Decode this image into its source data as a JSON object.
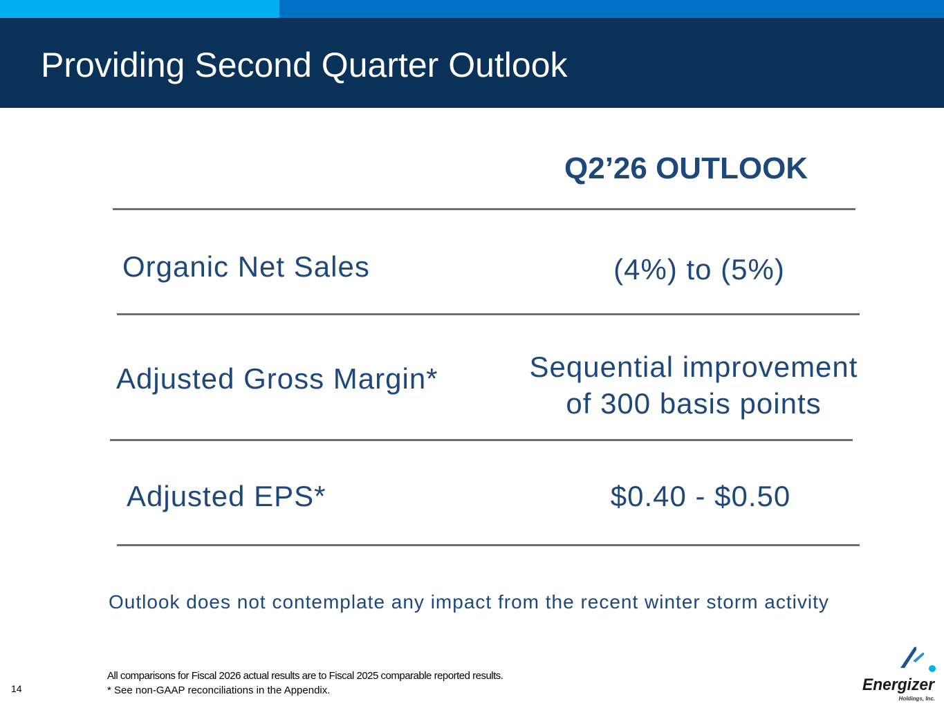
{
  "slide": {
    "title": "Providing Second Quarter Outlook",
    "column_header": "Q2’26 OUTLOOK",
    "rows": [
      {
        "label": "Organic Net Sales",
        "value": "(4%) to (5%)"
      },
      {
        "label": "Adjusted Gross Margin*",
        "value_line1": "Sequential improvement",
        "value_line2": "of 300 basis points"
      },
      {
        "label": "Adjusted EPS*",
        "value": "$0.40 - $0.50"
      }
    ],
    "note": "Outlook does not contemplate any impact from the recent winter storm activity",
    "footnotes": [
      "All comparisons for Fiscal 2026 actual results are to Fiscal 2025 comparable reported results.",
      "* See non-GAAP reconciliations in the Appendix."
    ],
    "page_number": "14"
  },
  "logo": {
    "wordmark": "Energizer",
    "subtext": "Holdings, Inc."
  },
  "colors": {
    "header_bg": "#0a3158",
    "top_bar": "#0072c6",
    "top_bar_accent": "#00b0f0",
    "text_blue": "#1e477a",
    "rule": "#6b6e72"
  }
}
